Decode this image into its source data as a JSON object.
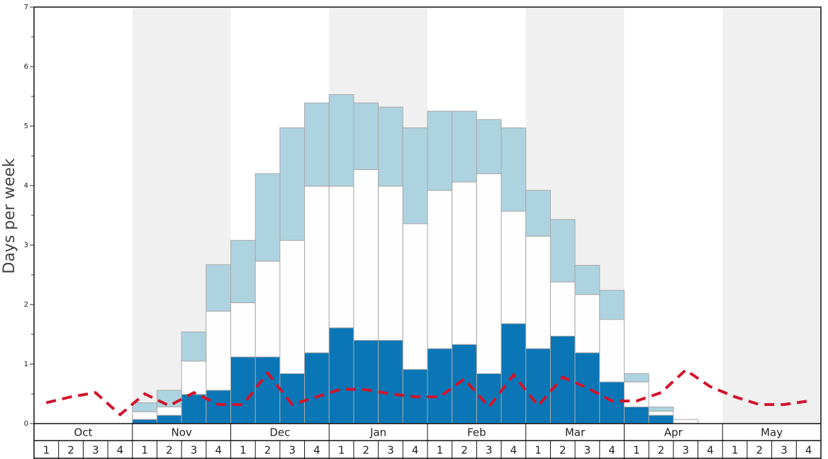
{
  "chart_data": {
    "type": "stacked-bar",
    "y_label": "Days per week",
    "months": [
      "Oct",
      "Nov",
      "Dec",
      "Jan",
      "Feb",
      "Mar",
      "Apr",
      "May"
    ],
    "categories": [
      "1",
      "2",
      "3",
      "4",
      "1",
      "2",
      "3",
      "4",
      "1",
      "2",
      "3",
      "4",
      "1",
      "2",
      "3",
      "4",
      "1",
      "2",
      "3",
      "4",
      "1",
      "2",
      "3",
      "4",
      "1",
      "2",
      "3",
      "4",
      "1",
      "2",
      "3",
      "4"
    ],
    "series": [
      {
        "color": "#0a76b6",
        "values": [
          0,
          0,
          0,
          0,
          0.07,
          0.14,
          0.49,
          0.56,
          1.12,
          1.12,
          0.84,
          1.19,
          1.61,
          1.4,
          1.4,
          0.91,
          1.26,
          1.33,
          0.84,
          1.68,
          1.26,
          1.47,
          1.19,
          0.7,
          0.28,
          0.14,
          0,
          0,
          0,
          0,
          0,
          0
        ]
      },
      {
        "color": "#fefefe",
        "values": [
          0,
          0,
          0,
          0,
          0.13,
          0.14,
          0.56,
          1.33,
          0.91,
          1.61,
          2.24,
          2.8,
          2.38,
          2.87,
          2.59,
          2.45,
          2.66,
          2.73,
          3.36,
          1.89,
          1.89,
          0.91,
          0.98,
          1.05,
          0.42,
          0.07,
          0.07,
          0,
          0,
          0,
          0,
          0
        ]
      },
      {
        "color": "#aed3e0",
        "values": [
          0,
          0,
          0,
          0,
          0.15,
          0.28,
          0.49,
          0.78,
          1.05,
          1.47,
          1.89,
          1.4,
          1.54,
          1.12,
          1.33,
          1.61,
          1.33,
          1.19,
          0.91,
          1.4,
          0.77,
          1.05,
          0.49,
          0.49,
          0.14,
          0.07,
          0,
          0,
          0,
          0,
          0,
          0
        ]
      }
    ],
    "line": {
      "color": "#d0142c",
      "dashed": true,
      "values": [
        0.35,
        0.45,
        0.52,
        0.15,
        0.5,
        0.3,
        0.52,
        0.32,
        0.32,
        0.85,
        0.32,
        0.45,
        0.58,
        0.57,
        0.5,
        0.45,
        0.45,
        0.75,
        0.28,
        0.82,
        0.3,
        0.78,
        0.6,
        0.38,
        0.38,
        0.52,
        0.9,
        0.62,
        0.45,
        0.32,
        0.32,
        0.38
      ]
    },
    "ylim": [
      0,
      7
    ],
    "yticks": [
      0,
      1,
      2,
      3,
      4,
      5,
      6,
      7
    ],
    "shade_alternate_months": true
  }
}
